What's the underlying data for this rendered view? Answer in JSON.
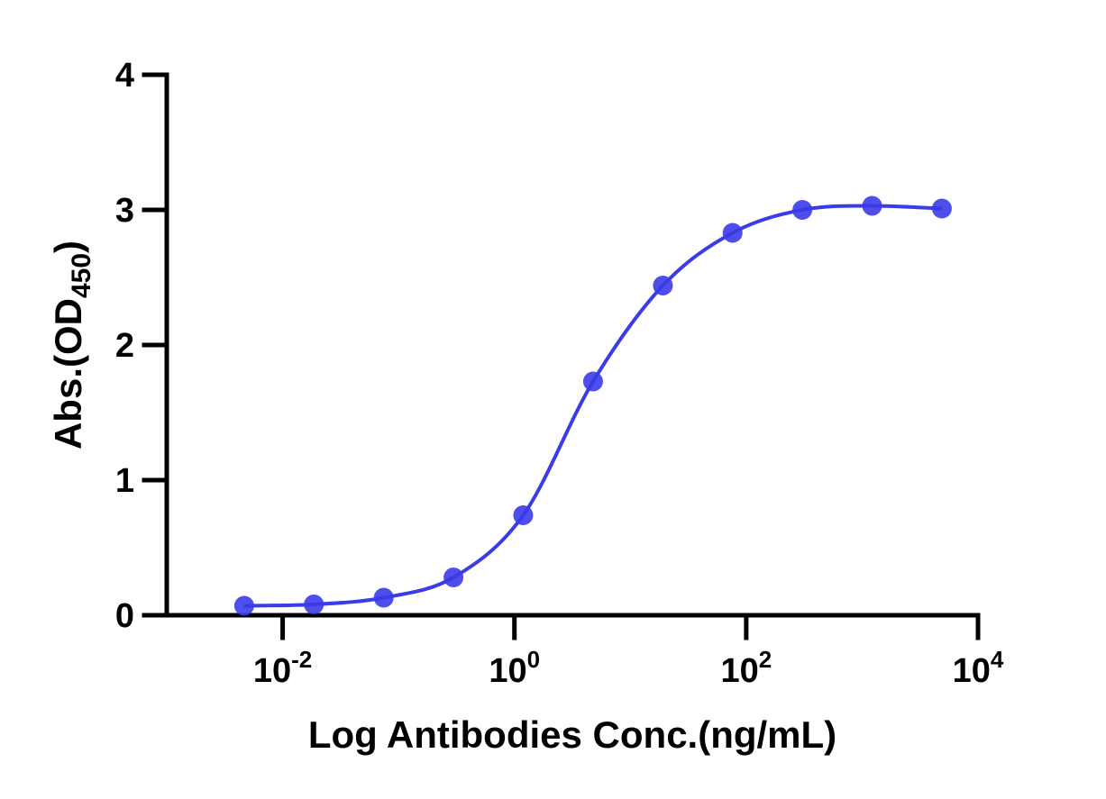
{
  "chart_data": {
    "type": "scatter",
    "xlabel": "Log Antibodies Conc.(ng/mL)",
    "ylabel": {
      "text": "Abs.(OD",
      "subscript": "450",
      "suffix": ")"
    },
    "xscale": "log",
    "xlim": [
      0.001,
      10000
    ],
    "ylim": [
      0,
      4
    ],
    "xticks": [
      {
        "value": 0.01,
        "label": "10",
        "exponent": "-2"
      },
      {
        "value": 1,
        "label": "10",
        "exponent": "0"
      },
      {
        "value": 100,
        "label": "10",
        "exponent": "2"
      },
      {
        "value": 10000,
        "label": "10",
        "exponent": "4"
      }
    ],
    "yticks": [
      0,
      1,
      2,
      3,
      4
    ],
    "fit_line": true,
    "series": [
      {
        "color": "#3b3be8",
        "x": [
          0.00466,
          0.0186,
          0.0745,
          0.298,
          1.19,
          4.77,
          19.1,
          76.3,
          305,
          1220,
          4880
        ],
        "values": [
          0.07,
          0.08,
          0.13,
          0.28,
          0.74,
          1.73,
          2.44,
          2.83,
          3.0,
          3.03,
          3.01
        ]
      }
    ]
  }
}
